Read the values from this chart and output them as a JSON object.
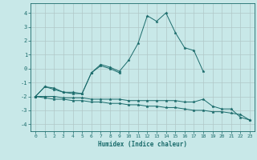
{
  "xlabel": "Humidex (Indice chaleur)",
  "ylabel": "",
  "background_color": "#c8e8e8",
  "grid_color": "#b0c8c8",
  "line_color": "#1a6b6b",
  "x_values": [
    0,
    1,
    2,
    3,
    4,
    5,
    6,
    7,
    8,
    9,
    10,
    11,
    12,
    13,
    14,
    15,
    16,
    17,
    18,
    19,
    20,
    21,
    22,
    23
  ],
  "curve1": [
    -2.0,
    -1.3,
    -1.4,
    -1.7,
    -1.7,
    -1.8,
    -0.3,
    0.3,
    0.1,
    -0.2,
    0.6,
    1.8,
    3.8,
    3.4,
    4.0,
    2.6,
    1.5,
    1.3,
    -0.2,
    null,
    null,
    null,
    null,
    null
  ],
  "curve2": [
    -2.0,
    -1.3,
    -1.5,
    -1.7,
    -1.8,
    -1.8,
    -0.3,
    0.2,
    0.0,
    -0.3,
    null,
    null,
    null,
    null,
    null,
    null,
    null,
    null,
    null,
    null,
    null,
    null,
    null,
    null
  ],
  "curve3": [
    -2.0,
    -2.0,
    -2.0,
    -2.1,
    -2.1,
    -2.1,
    -2.2,
    -2.2,
    -2.2,
    -2.2,
    -2.3,
    -2.3,
    -2.3,
    -2.3,
    -2.3,
    -2.3,
    -2.4,
    -2.4,
    -2.2,
    -2.7,
    -2.9,
    -2.9,
    -3.5,
    -3.7
  ],
  "curve4": [
    -2.0,
    -2.1,
    -2.2,
    -2.2,
    -2.3,
    -2.3,
    -2.4,
    -2.4,
    -2.5,
    -2.5,
    -2.6,
    -2.6,
    -2.7,
    -2.7,
    -2.8,
    -2.8,
    -2.9,
    -3.0,
    -3.0,
    -3.1,
    -3.1,
    -3.2,
    -3.3,
    -3.7
  ],
  "xlim": [
    -0.5,
    23.5
  ],
  "ylim": [
    -4.5,
    4.7
  ],
  "yticks": [
    -4,
    -3,
    -2,
    -1,
    0,
    1,
    2,
    3,
    4
  ],
  "xticks": [
    0,
    1,
    2,
    3,
    4,
    5,
    6,
    7,
    8,
    9,
    10,
    11,
    12,
    13,
    14,
    15,
    16,
    17,
    18,
    19,
    20,
    21,
    22,
    23
  ]
}
